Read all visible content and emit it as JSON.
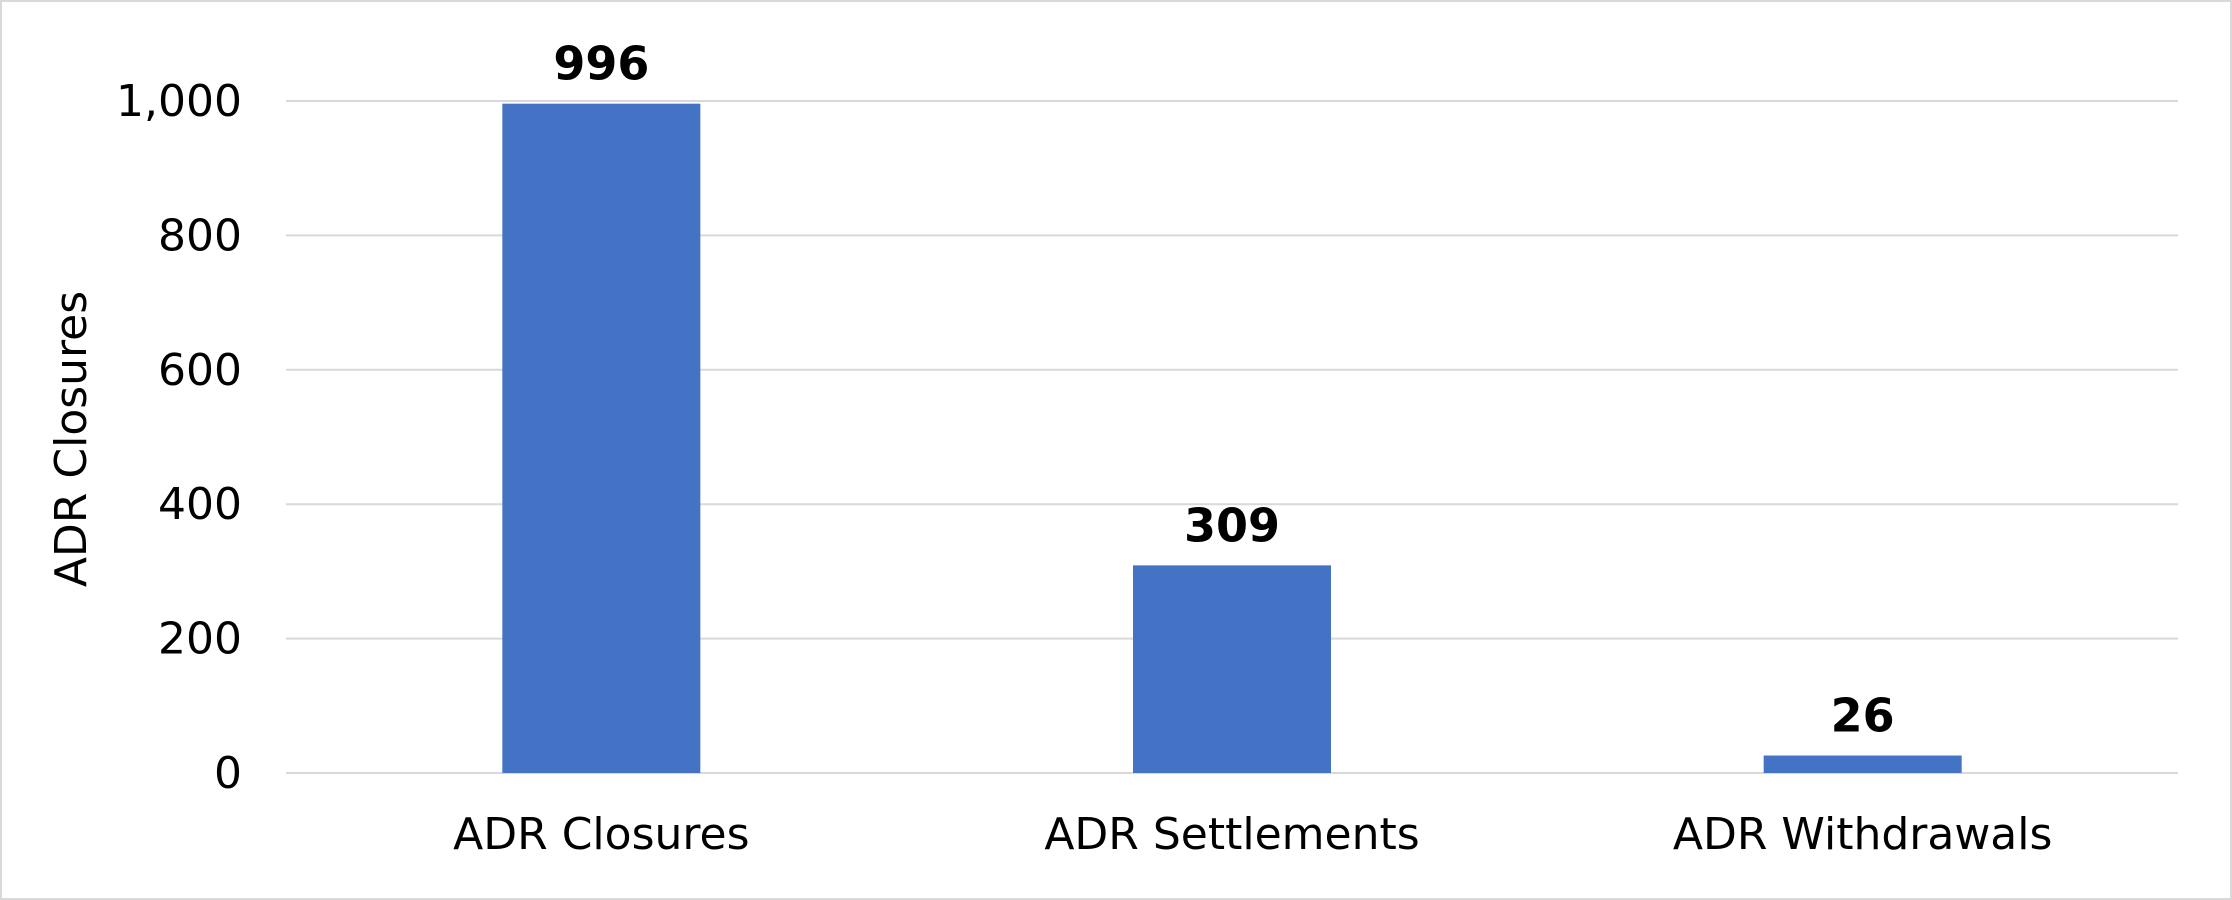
{
  "chart_data": {
    "type": "bar",
    "categories": [
      "ADR Closures",
      "ADR Settlements",
      "ADR Withdrawals"
    ],
    "values": [
      996,
      309,
      26
    ],
    "data_labels": [
      "996",
      "309",
      "26"
    ],
    "title": "",
    "xlabel": "",
    "ylabel": "ADR Closures",
    "ylim": [
      0,
      1000
    ],
    "yticks": [
      0,
      200,
      400,
      600,
      800,
      1000
    ],
    "ytick_labels": [
      "0",
      "200",
      "400",
      "600",
      "800",
      "1,000"
    ],
    "grid": true,
    "legend": "none",
    "bar_color": "#4472c4",
    "grid_color": "#d9d9d9"
  }
}
